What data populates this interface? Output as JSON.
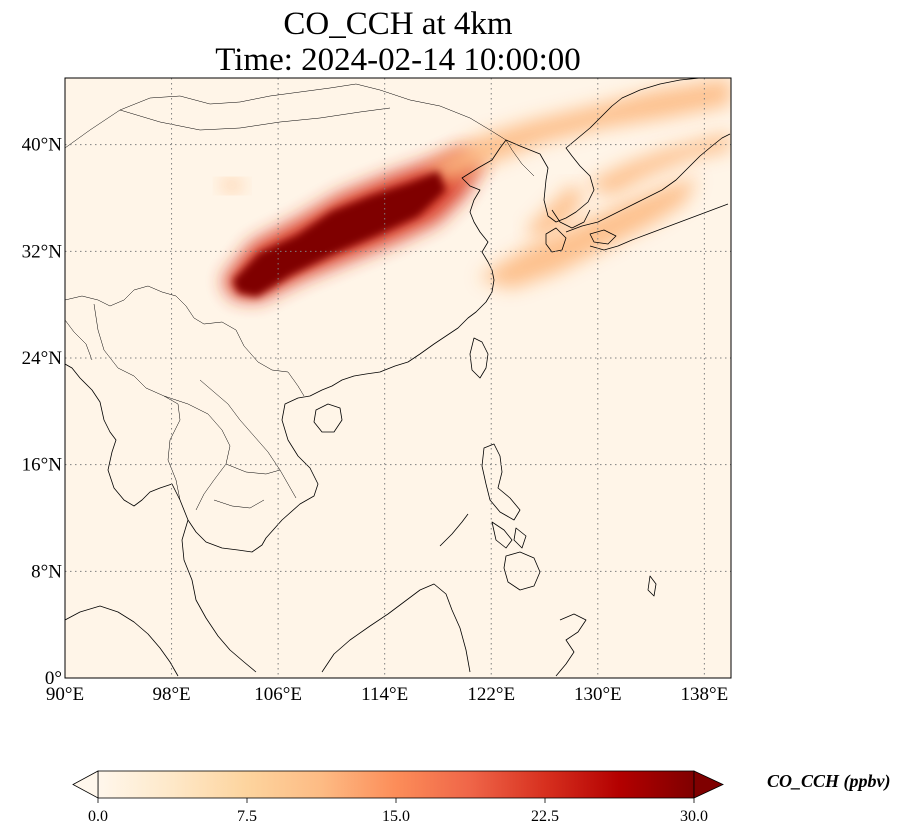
{
  "title": {
    "line1": "CO_CCH at 4km",
    "line2": "Time: 2024-02-14 10:00:00"
  },
  "map": {
    "lon_range": [
      90,
      140
    ],
    "lat_range": [
      0,
      45
    ],
    "x_ticks": [
      {
        "value": 90,
        "label": "90°E"
      },
      {
        "value": 98,
        "label": "98°E"
      },
      {
        "value": 106,
        "label": "106°E"
      },
      {
        "value": 114,
        "label": "114°E"
      },
      {
        "value": 122,
        "label": "122°E"
      },
      {
        "value": 130,
        "label": "130°E"
      },
      {
        "value": 138,
        "label": "138°E"
      }
    ],
    "y_ticks": [
      {
        "value": 0,
        "label": "0°"
      },
      {
        "value": 8,
        "label": "8°N"
      },
      {
        "value": 16,
        "label": "16°N"
      },
      {
        "value": 24,
        "label": "24°N"
      },
      {
        "value": 32,
        "label": "32°N"
      },
      {
        "value": 40,
        "label": "40°N"
      }
    ],
    "gridlines": true,
    "colormap": "OrRd",
    "background_color": "#fff5e8"
  },
  "colorbar": {
    "label": "CO_CCH (ppbv)",
    "min": 0.0,
    "max": 30.0,
    "ticks": [
      {
        "value": 0.0,
        "label": "0.0"
      },
      {
        "value": 7.5,
        "label": "7.5"
      },
      {
        "value": 15.0,
        "label": "15.0"
      },
      {
        "value": 22.5,
        "label": "22.5"
      },
      {
        "value": 30.0,
        "label": "30.0"
      }
    ],
    "extend": "both",
    "stops": [
      "#fff7ec",
      "#fee8c8",
      "#fdd49e",
      "#fdbb84",
      "#fc8d59",
      "#ef6548",
      "#d7301f",
      "#b30000",
      "#7f0000"
    ]
  },
  "plumes": [
    {
      "name": "main plume core",
      "value": 30,
      "points": [
        [
          102.6,
          29.8
        ],
        [
          104.6,
          31.9
        ],
        [
          107.4,
          33.2
        ],
        [
          110.0,
          35.0
        ],
        [
          113.0,
          36.2
        ],
        [
          116.0,
          37.2
        ],
        [
          118.0,
          38.0
        ],
        [
          118.6,
          36.6
        ],
        [
          116.5,
          34.6
        ],
        [
          113.5,
          33.2
        ],
        [
          110.2,
          31.8
        ],
        [
          107.0,
          30.2
        ],
        [
          104.4,
          28.6
        ],
        [
          103.0,
          28.9
        ]
      ]
    },
    {
      "name": "main plume halo",
      "value": 22,
      "points": [
        [
          101.8,
          29.8
        ],
        [
          104.0,
          32.6
        ],
        [
          107.5,
          34.4
        ],
        [
          110.5,
          36.2
        ],
        [
          114.0,
          37.6
        ],
        [
          117.5,
          38.8
        ],
        [
          120.0,
          39.8
        ],
        [
          121.5,
          38.7
        ],
        [
          120.0,
          36.2
        ],
        [
          118.0,
          34.2
        ],
        [
          115.0,
          32.8
        ],
        [
          111.5,
          31.4
        ],
        [
          108.0,
          30.0
        ],
        [
          104.5,
          28.3
        ],
        [
          102.6,
          28.5
        ]
      ]
    },
    {
      "name": "plume tail north-east",
      "value": 11,
      "points": [
        [
          117.0,
          38.2
        ],
        [
          121.0,
          40.6
        ],
        [
          125.0,
          41.8
        ],
        [
          130.0,
          43.0
        ],
        [
          134.0,
          44.0
        ],
        [
          140.0,
          45.0
        ],
        [
          140.0,
          43.0
        ],
        [
          135.0,
          42.0
        ],
        [
          130.0,
          41.2
        ],
        [
          126.0,
          40.2
        ],
        [
          122.0,
          38.6
        ],
        [
          119.0,
          37.2
        ]
      ]
    },
    {
      "name": "eastern band",
      "value": 12,
      "points": [
        [
          121.0,
          30.0
        ],
        [
          124.5,
          32.2
        ],
        [
          128.5,
          34.0
        ],
        [
          132.0,
          35.6
        ],
        [
          135.0,
          36.8
        ],
        [
          137.5,
          37.6
        ],
        [
          136.5,
          35.6
        ],
        [
          134.0,
          34.0
        ],
        [
          130.5,
          32.2
        ],
        [
          127.0,
          30.4
        ],
        [
          123.5,
          29.2
        ]
      ]
    },
    {
      "name": "japan plume",
      "value": 13,
      "points": [
        [
          129.0,
          37.0
        ],
        [
          132.0,
          38.5
        ],
        [
          135.0,
          39.6
        ],
        [
          138.0,
          40.4
        ],
        [
          140.0,
          40.9
        ],
        [
          140.0,
          39.6
        ],
        [
          137.0,
          39.0
        ],
        [
          134.0,
          37.8
        ],
        [
          131.0,
          36.2
        ]
      ]
    },
    {
      "name": "korea patch",
      "value": 12,
      "points": [
        [
          124.5,
          33.5
        ],
        [
          126.5,
          35.5
        ],
        [
          128.0,
          37.0
        ],
        [
          129.0,
          36.2
        ],
        [
          127.8,
          34.4
        ],
        [
          126.0,
          33.0
        ]
      ]
    },
    {
      "name": "west small patch",
      "value": 12,
      "points": [
        [
          101.5,
          37.2
        ],
        [
          102.6,
          37.4
        ],
        [
          103.6,
          37.0
        ],
        [
          102.4,
          36.4
        ]
      ]
    }
  ]
}
